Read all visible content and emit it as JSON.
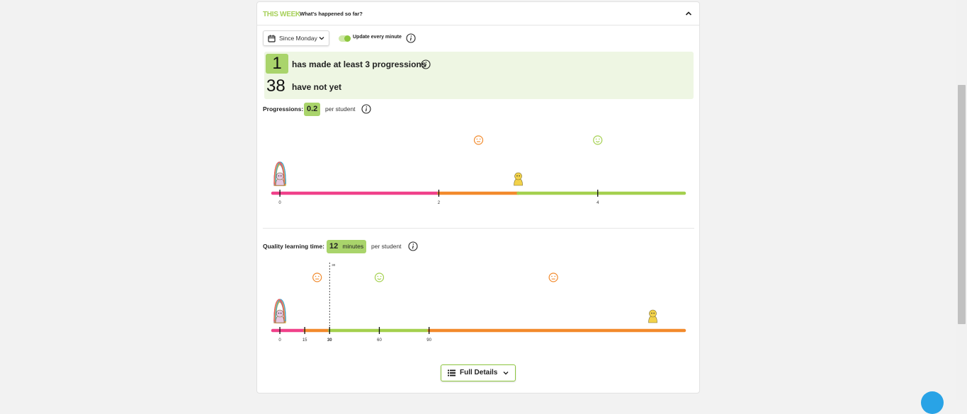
{
  "header": {
    "title": "THIS WEEK",
    "subtitle": "What's happened so far?"
  },
  "controls": {
    "range_label": "Since Monday",
    "toggle_label": "Update every minute",
    "toggle_on": true
  },
  "summary": {
    "achieved_count": "1",
    "achieved_text": "has made at least 3 progressions",
    "pending_count": "38",
    "pending_text": "have not yet"
  },
  "progressions": {
    "label": "Progressions:",
    "value": "0.2",
    "unit": "per student",
    "chart_data": {
      "type": "scatter",
      "x_ticks": [
        "0",
        "2",
        "4"
      ],
      "xlim": [
        -0.09,
        5.09
      ],
      "segments": [
        {
          "from": -0.09,
          "to": 2,
          "color": "#f0418a"
        },
        {
          "from": 2,
          "to": 3,
          "color": "#f28a2c"
        },
        {
          "from": 3,
          "to": 5.09,
          "color": "#a4d04e"
        }
      ],
      "faces": [
        {
          "x": 2.5,
          "mood": "meh",
          "color": "#f28a2c"
        },
        {
          "x": 4,
          "mood": "happy",
          "color": "#a4d04e"
        }
      ],
      "groups": [
        {
          "x": 0,
          "count": 38,
          "type": "stack"
        },
        {
          "x": 3,
          "count": 1,
          "type": "single"
        }
      ]
    }
  },
  "quality_time": {
    "label": "Quality learning time:",
    "value": "12",
    "value_unit": "minutes",
    "unit": "per student",
    "chart_data": {
      "type": "scatter",
      "x_ticks": [
        "0",
        "15",
        "30",
        "60",
        "90"
      ],
      "bold_tick": "30",
      "threshold": {
        "x": 30,
        "label": "30"
      },
      "xlim": [
        -4.3,
        244
      ],
      "segments": [
        {
          "from": -4.3,
          "to": 15,
          "color": "#f0418a"
        },
        {
          "from": 15,
          "to": 30,
          "color": "#f28a2c"
        },
        {
          "from": 30,
          "to": 90,
          "color": "#a4d04e"
        },
        {
          "from": 90,
          "to": 244,
          "color": "#f28a2c"
        }
      ],
      "faces": [
        {
          "x": 22.5,
          "mood": "meh",
          "color": "#f28a2c"
        },
        {
          "x": 60,
          "mood": "happy",
          "color": "#a4d04e"
        },
        {
          "x": 165,
          "mood": "meh",
          "color": "#f28a2c"
        }
      ],
      "groups": [
        {
          "x": 0,
          "count": 38,
          "type": "stack"
        },
        {
          "x": 225,
          "count": 1,
          "type": "single"
        }
      ]
    }
  },
  "footer": {
    "details_label": "Full Details"
  },
  "colors": {
    "accent": "#a9d46b",
    "pink": "#f0418a",
    "orange": "#f28a2c",
    "green": "#a4d04e"
  }
}
